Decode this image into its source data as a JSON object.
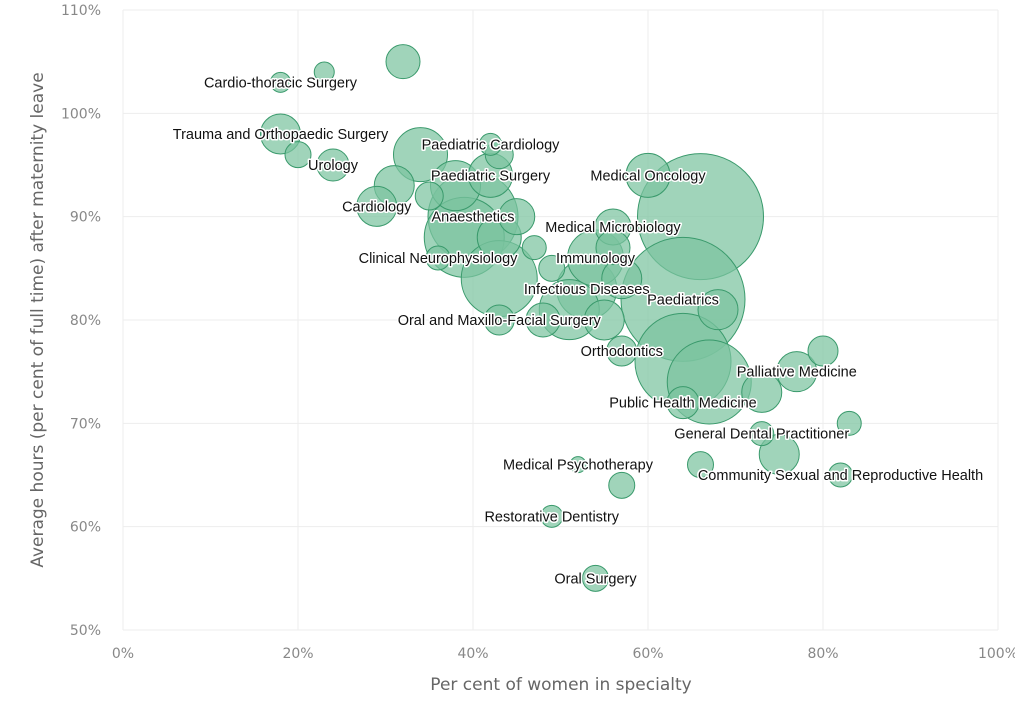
{
  "chart_data": {
    "type": "scatter",
    "subtype": "bubble",
    "xlabel": "Per cent of women in specialty",
    "ylabel": "Average hours (per cent of full time) after maternity leave",
    "xlim": [
      0,
      100
    ],
    "ylim": [
      50,
      110
    ],
    "x_ticks": [
      {
        "value": 0,
        "label": "0%"
      },
      {
        "value": 20,
        "label": "20%"
      },
      {
        "value": 40,
        "label": "40%"
      },
      {
        "value": 60,
        "label": "60%"
      },
      {
        "value": 80,
        "label": "80%"
      },
      {
        "value": 100,
        "label": "100%"
      }
    ],
    "y_ticks": [
      {
        "value": 50,
        "label": "50%"
      },
      {
        "value": 60,
        "label": "60%"
      },
      {
        "value": 70,
        "label": "70%"
      },
      {
        "value": 80,
        "label": "80%"
      },
      {
        "value": 90,
        "label": "90%"
      },
      {
        "value": 100,
        "label": "100%"
      },
      {
        "value": 110,
        "label": "110%"
      }
    ],
    "colors": {
      "fill": "#7cc4a0",
      "stroke": "#3a9a6c",
      "grid": "#ededed",
      "label": "#111111"
    },
    "points": [
      {
        "name": "Cardio-thoracic Surgery",
        "x": 18,
        "y": 103,
        "size": 10
      },
      {
        "name": "",
        "x": 23,
        "y": 104,
        "size": 10
      },
      {
        "name": "",
        "x": 32,
        "y": 105,
        "size": 17
      },
      {
        "name": "Trauma and Orthopaedic Surgery",
        "x": 18,
        "y": 98,
        "size": 20
      },
      {
        "name": "",
        "x": 20,
        "y": 96,
        "size": 13
      },
      {
        "name": "Urology",
        "x": 24,
        "y": 95,
        "size": 16
      },
      {
        "name": "Paediatric Cardiology",
        "x": 42,
        "y": 97,
        "size": 11
      },
      {
        "name": "",
        "x": 43,
        "y": 96,
        "size": 14
      },
      {
        "name": "",
        "x": 34,
        "y": 96,
        "size": 27
      },
      {
        "name": "Paediatric Surgery",
        "x": 42,
        "y": 94,
        "size": 22
      },
      {
        "name": "",
        "x": 38,
        "y": 93,
        "size": 25
      },
      {
        "name": "Medical Oncology",
        "x": 60,
        "y": 94,
        "size": 22
      },
      {
        "name": "",
        "x": 31,
        "y": 93,
        "size": 20
      },
      {
        "name": "Cardiology",
        "x": 29,
        "y": 91,
        "size": 20
      },
      {
        "name": "",
        "x": 35,
        "y": 92,
        "size": 14
      },
      {
        "name": "Anaesthetics",
        "x": 40,
        "y": 90,
        "size": 45
      },
      {
        "name": "",
        "x": 45,
        "y": 90,
        "size": 18
      },
      {
        "name": "",
        "x": 66,
        "y": 90,
        "size": 63
      },
      {
        "name": "Medical Microbiology",
        "x": 56,
        "y": 89,
        "size": 18
      },
      {
        "name": "",
        "x": 39,
        "y": 88,
        "size": 40
      },
      {
        "name": "",
        "x": 43,
        "y": 88,
        "size": 22
      },
      {
        "name": "",
        "x": 47,
        "y": 87,
        "size": 12
      },
      {
        "name": "",
        "x": 56,
        "y": 87,
        "size": 17
      },
      {
        "name": "Clinical Neurophysiology",
        "x": 36,
        "y": 86,
        "size": 12
      },
      {
        "name": "Immunology",
        "x": 54,
        "y": 86,
        "size": 28
      },
      {
        "name": "",
        "x": 43,
        "y": 84,
        "size": 38
      },
      {
        "name": "",
        "x": 49,
        "y": 85,
        "size": 13
      },
      {
        "name": "Infectious Diseases",
        "x": 53,
        "y": 83,
        "size": 30
      },
      {
        "name": "",
        "x": 57,
        "y": 84,
        "size": 20
      },
      {
        "name": "Paediatrics",
        "x": 64,
        "y": 82,
        "size": 62
      },
      {
        "name": "",
        "x": 68,
        "y": 81,
        "size": 20
      },
      {
        "name": "",
        "x": 51,
        "y": 81,
        "size": 30
      },
      {
        "name": "Oral and Maxillo-Facial Surgery",
        "x": 43,
        "y": 80,
        "size": 15
      },
      {
        "name": "",
        "x": 48,
        "y": 80,
        "size": 17
      },
      {
        "name": "",
        "x": 55,
        "y": 80,
        "size": 20
      },
      {
        "name": "Orthodontics",
        "x": 57,
        "y": 77,
        "size": 15
      },
      {
        "name": "",
        "x": 64,
        "y": 76,
        "size": 48
      },
      {
        "name": "Palliative Medicine",
        "x": 77,
        "y": 75,
        "size": 20
      },
      {
        "name": "",
        "x": 80,
        "y": 77,
        "size": 15
      },
      {
        "name": "",
        "x": 67,
        "y": 74,
        "size": 42
      },
      {
        "name": "",
        "x": 73,
        "y": 73,
        "size": 20
      },
      {
        "name": "Public Health Medicine",
        "x": 64,
        "y": 72,
        "size": 16
      },
      {
        "name": "",
        "x": 83,
        "y": 70,
        "size": 12
      },
      {
        "name": "General Dental Practitioner",
        "x": 73,
        "y": 69,
        "size": 12
      },
      {
        "name": "",
        "x": 75,
        "y": 67,
        "size": 20
      },
      {
        "name": "Medical Psychotherapy",
        "x": 52,
        "y": 66,
        "size": 8
      },
      {
        "name": "",
        "x": 66,
        "y": 66,
        "size": 13
      },
      {
        "name": "Community Sexual and Reproductive Health",
        "x": 82,
        "y": 65,
        "size": 12
      },
      {
        "name": "",
        "x": 57,
        "y": 64,
        "size": 13
      },
      {
        "name": "Restorative Dentistry",
        "x": 49,
        "y": 61,
        "size": 11
      },
      {
        "name": "Oral Surgery",
        "x": 54,
        "y": 55,
        "size": 13
      }
    ]
  }
}
